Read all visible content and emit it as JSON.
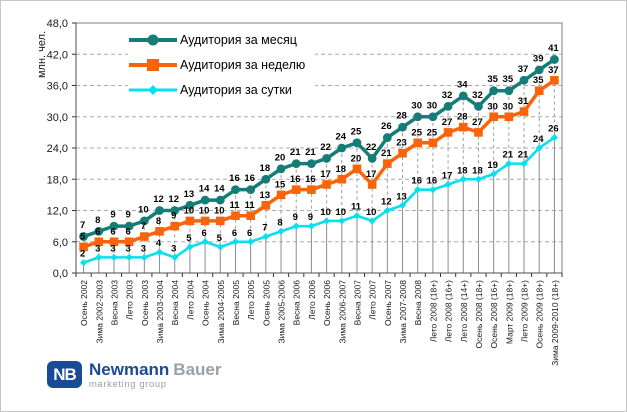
{
  "chart": {
    "y_axis_title": "млн. чел.",
    "y_ticks": [
      {
        "value": 48,
        "label": "48,0"
      },
      {
        "value": 42,
        "label": "42,0"
      },
      {
        "value": 36,
        "label": "36,0"
      },
      {
        "value": 30,
        "label": "30,0"
      },
      {
        "value": 24,
        "label": "24,0"
      },
      {
        "value": 18,
        "label": "18,0"
      },
      {
        "value": 12,
        "label": "12,0"
      },
      {
        "value": 6,
        "label": "6,0"
      },
      {
        "value": 0,
        "label": "0,0"
      }
    ]
  },
  "chart_data": {
    "type": "line",
    "title": "",
    "xlabel": "",
    "ylabel": "млн. чел.",
    "ylim": [
      0,
      48
    ],
    "ytick_step": 6,
    "grid": "horizontal-dashed",
    "legend_position": "top-left",
    "categories": [
      "Осень 2002",
      "Зима 2002-2003",
      "Весна 2003",
      "Лето 2003",
      "Осень 2003",
      "Зима 2003-2004",
      "Весна 2004",
      "Лето 2004",
      "Осень 2004",
      "Зима 2004-2005",
      "Весна 2005",
      "Лето 2005",
      "Осень 2005",
      "Зима 2005-2006",
      "Весна 2006",
      "Лето 2006",
      "Осень 2006",
      "Зима 2006-2007",
      "Весна 2007",
      "Лето 2007",
      "Осень 2007",
      "Зима 2007-2008",
      "Весна 2008",
      "Лето 2008 (18+)",
      "Лето 2008 (16+)",
      "Лето 2008 (14+)",
      "Осень 2008 (18+)",
      "Осень 2008 (16+)",
      "Март 2009 (18+)",
      "Лето 2009 (18+)",
      "Осень 2009 (18+)",
      "Зима 2009-2010 (18+)"
    ],
    "series": [
      {
        "name": "Аудитория за месяц",
        "color": "#147D76",
        "marker": "circle",
        "values": [
          7,
          8,
          9,
          9,
          10,
          12,
          12,
          13,
          14,
          14,
          16,
          16,
          18,
          20,
          21,
          21,
          22,
          24,
          25,
          22,
          26,
          28,
          30,
          30,
          32,
          34,
          32,
          35,
          35,
          37,
          39,
          41
        ]
      },
      {
        "name": "Аудитория за неделю",
        "color": "#FA6409",
        "marker": "square",
        "values": [
          5,
          6,
          6,
          6,
          7,
          8,
          9,
          10,
          10,
          10,
          11,
          11,
          13,
          15,
          16,
          16,
          17,
          18,
          20,
          17,
          21,
          23,
          25,
          25,
          27,
          28,
          27,
          30,
          30,
          31,
          35,
          37
        ]
      },
      {
        "name": "Аудитория за сутки",
        "color": "#09DFEF",
        "marker": "diamond",
        "values": [
          2,
          3,
          3,
          3,
          3,
          4,
          3,
          5,
          6,
          5,
          6,
          6,
          7,
          8,
          9,
          9,
          10,
          10,
          11,
          10,
          12,
          13,
          16,
          16,
          17,
          18,
          18,
          19,
          21,
          21,
          24,
          26
        ]
      }
    ]
  },
  "logo": {
    "monogram": "NB",
    "name_primary": "Newmann",
    "name_secondary": "Bauer",
    "tagline": "marketing group"
  }
}
